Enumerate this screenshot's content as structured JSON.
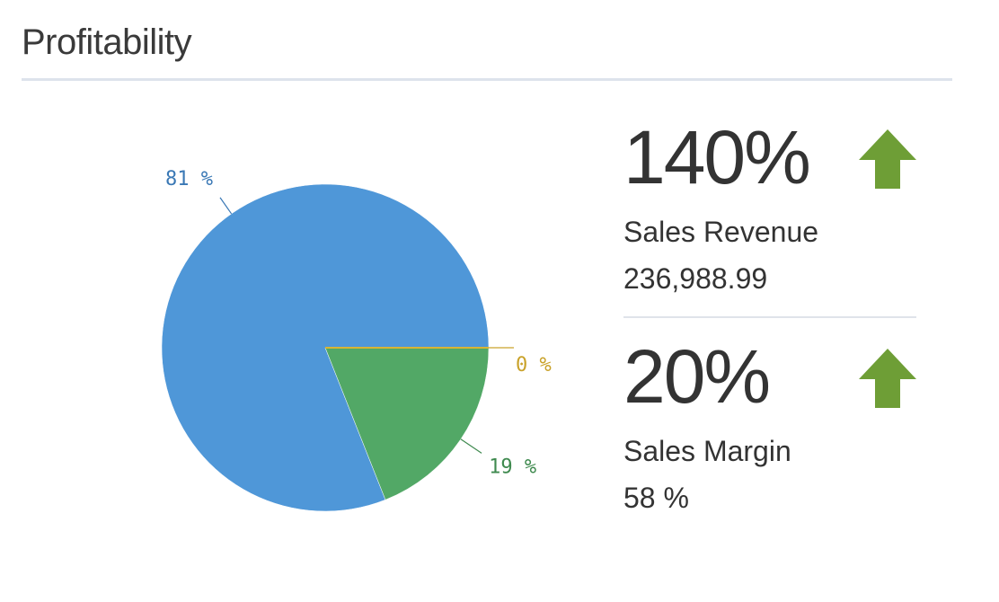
{
  "widget": {
    "title": "Profitability"
  },
  "chart_data": {
    "type": "pie",
    "slices": [
      {
        "label": "81 %",
        "value": 81,
        "color": "#4f97d8",
        "label_color": "#3a78b5"
      },
      {
        "label": "19 %",
        "value": 19,
        "color": "#52a866",
        "label_color": "#3f8a4f"
      },
      {
        "label": "0 %",
        "value": 0,
        "color": "#d8b434",
        "label_color": "#c9a22a"
      }
    ],
    "start_angle_deg": 90,
    "direction": "clockwise"
  },
  "kpis": [
    {
      "value": "140%",
      "trend_icon": "arrow-up-icon",
      "trend_color": "#6e9e36",
      "label": "Sales Revenue",
      "sub": "236,988.99"
    },
    {
      "value": "20%",
      "trend_icon": "arrow-up-icon",
      "trend_color": "#6e9e36",
      "label": "Sales Margin",
      "sub": "58 %"
    }
  ]
}
